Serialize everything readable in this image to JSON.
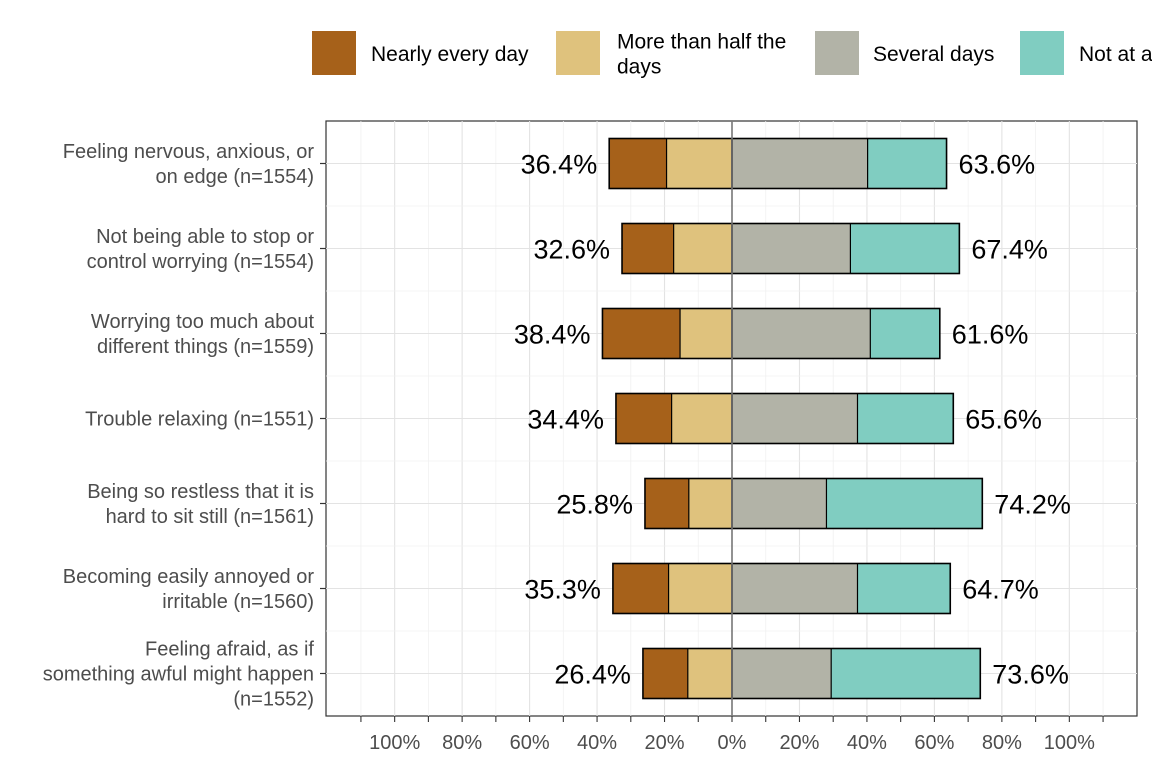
{
  "chart_data": {
    "type": "bar",
    "orientation": "horizontal",
    "stacking": "diverging",
    "categories": [
      "Feeling nervous, anxious, or\non edge (n=1554)",
      "Not being able to stop or\ncontrol worrying (n=1554)",
      "Worrying too much about\ndifferent things (n=1559)",
      "Trouble relaxing (n=1551)",
      "Being so restless that it is\nhard to sit still (n=1561)",
      "Becoming easily annoyed or\nirritable (n=1560)",
      "Feeling afraid, as if\nsomething awful might happen\n(n=1552)"
    ],
    "series": [
      {
        "name": "Nearly every day",
        "color": "#A6611A",
        "side": "left",
        "values": [
          17.0,
          15.3,
          23.0,
          16.5,
          13.0,
          16.5,
          13.3
        ]
      },
      {
        "name": "More than half the days",
        "color": "#DFC27D",
        "side": "left",
        "values": [
          19.4,
          17.3,
          15.4,
          17.9,
          12.8,
          18.8,
          13.1
        ]
      },
      {
        "name": "Several days",
        "color": "#B2B3A7",
        "side": "right",
        "values": [
          40.2,
          35.1,
          41.0,
          37.2,
          28.0,
          37.2,
          29.4
        ]
      },
      {
        "name": "Not at all",
        "color": "#80CDC1",
        "side": "right",
        "values": [
          23.4,
          32.3,
          20.6,
          28.4,
          46.2,
          27.5,
          44.2
        ]
      }
    ],
    "left_totals": [
      "36.4%",
      "32.6%",
      "38.4%",
      "34.4%",
      "25.8%",
      "35.3%",
      "26.4%"
    ],
    "right_totals": [
      "63.6%",
      "67.4%",
      "61.6%",
      "65.6%",
      "74.2%",
      "64.7%",
      "73.6%"
    ],
    "xlim": [
      -120,
      120
    ],
    "xticks": [
      -100,
      -80,
      -60,
      -40,
      -20,
      0,
      20,
      40,
      60,
      80,
      100
    ],
    "xtick_labels": [
      "100%",
      "80%",
      "60%",
      "40%",
      "20%",
      "0%",
      "20%",
      "40%",
      "60%",
      "80%",
      "100%"
    ],
    "legend": {
      "position": "top",
      "items": [
        "Nearly every day",
        "More than half the\ndays",
        "Several days",
        "Not at all"
      ]
    },
    "grid": true,
    "title": "",
    "xlabel": "",
    "ylabel": ""
  }
}
